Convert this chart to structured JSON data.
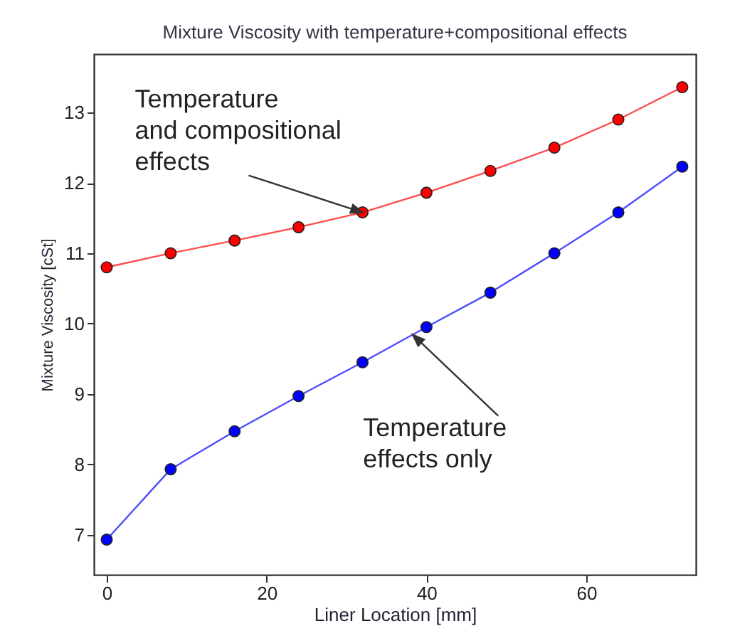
{
  "chart_data": {
    "type": "line",
    "title": "Mixture Viscosity with temperature+compositional effects",
    "xlabel": "Liner Location [mm]",
    "ylabel": "Mixture Viscosity [cSt]",
    "x": [
      0,
      8,
      16,
      24,
      32,
      40,
      48,
      56,
      64,
      72
    ],
    "series": [
      {
        "color": "#ff0000",
        "values": [
          10.8,
          11.0,
          11.18,
          11.37,
          11.58,
          11.86,
          12.17,
          12.5,
          12.9,
          13.36
        ]
      },
      {
        "color": "#0000ff",
        "values": [
          6.93,
          7.93,
          8.47,
          8.97,
          9.45,
          9.95,
          10.44,
          11.0,
          11.58,
          12.23
        ]
      }
    ],
    "annotations": [
      {
        "text": "Temperature\nand compositional\neffects",
        "x": 32,
        "y": 11.58
      },
      {
        "text": "Temperature\neffects only",
        "x": 38.3,
        "y": 9.84
      }
    ],
    "xlim": [
      -1.6,
      73.7
    ],
    "ylim": [
      6.43,
      13.83
    ],
    "xticks": [
      0,
      20,
      40,
      60
    ],
    "yticks": [
      7,
      8,
      9,
      10,
      11,
      12,
      13
    ],
    "grid": false,
    "legend": false,
    "marker": "circle",
    "line_style": "solid"
  }
}
